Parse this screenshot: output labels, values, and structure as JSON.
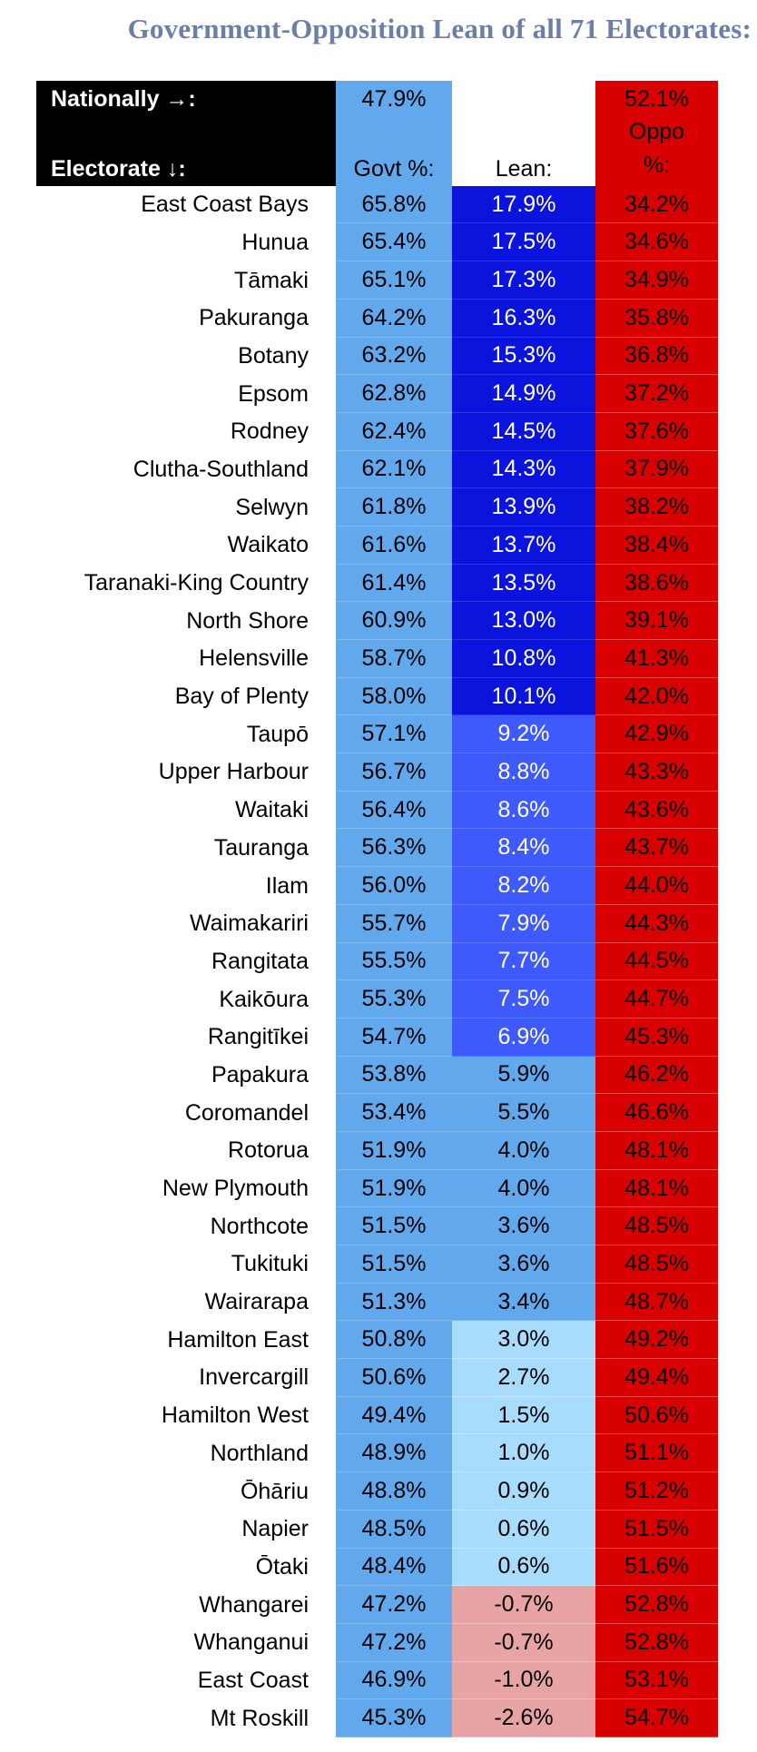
{
  "title": "Government-Opposition Lean of all 71 Electorates:",
  "header": {
    "national_label": "Nationally →:",
    "national_govt": "47.9%",
    "national_oppo": "52.1%",
    "electorate_label": "Electorate ↓:",
    "govt_label": "Govt %:",
    "lean_label": "Lean:",
    "oppo_label_1": "Oppo",
    "oppo_label_2": "%:"
  },
  "colors": {
    "govt": "#62a8ec",
    "oppo": "#d80000",
    "lean_strong": "#0a14dc",
    "lean_mid": "#3e5afa",
    "lean_weak": "#62a8ec",
    "lean_slight": "#a8dcfc",
    "lean_negative": "#e8a4a4",
    "title": "#6b7fa9"
  },
  "rows": [
    {
      "name": "East Coast Bays",
      "govt": "65.8%",
      "lean": "17.9%",
      "oppo": "34.2%",
      "tier": "strong"
    },
    {
      "name": "Hunua",
      "govt": "65.4%",
      "lean": "17.5%",
      "oppo": "34.6%",
      "tier": "strong"
    },
    {
      "name": "Tāmaki",
      "govt": "65.1%",
      "lean": "17.3%",
      "oppo": "34.9%",
      "tier": "strong"
    },
    {
      "name": "Pakuranga",
      "govt": "64.2%",
      "lean": "16.3%",
      "oppo": "35.8%",
      "tier": "strong"
    },
    {
      "name": "Botany",
      "govt": "63.2%",
      "lean": "15.3%",
      "oppo": "36.8%",
      "tier": "strong"
    },
    {
      "name": "Epsom",
      "govt": "62.8%",
      "lean": "14.9%",
      "oppo": "37.2%",
      "tier": "strong"
    },
    {
      "name": "Rodney",
      "govt": "62.4%",
      "lean": "14.5%",
      "oppo": "37.6%",
      "tier": "strong"
    },
    {
      "name": "Clutha-Southland",
      "govt": "62.1%",
      "lean": "14.3%",
      "oppo": "37.9%",
      "tier": "strong"
    },
    {
      "name": "Selwyn",
      "govt": "61.8%",
      "lean": "13.9%",
      "oppo": "38.2%",
      "tier": "strong"
    },
    {
      "name": "Waikato",
      "govt": "61.6%",
      "lean": "13.7%",
      "oppo": "38.4%",
      "tier": "strong"
    },
    {
      "name": "Taranaki-King Country",
      "govt": "61.4%",
      "lean": "13.5%",
      "oppo": "38.6%",
      "tier": "strong"
    },
    {
      "name": "North Shore",
      "govt": "60.9%",
      "lean": "13.0%",
      "oppo": "39.1%",
      "tier": "strong"
    },
    {
      "name": "Helensville",
      "govt": "58.7%",
      "lean": "10.8%",
      "oppo": "41.3%",
      "tier": "strong"
    },
    {
      "name": "Bay of Plenty",
      "govt": "58.0%",
      "lean": "10.1%",
      "oppo": "42.0%",
      "tier": "strong"
    },
    {
      "name": "Taupō",
      "govt": "57.1%",
      "lean": "9.2%",
      "oppo": "42.9%",
      "tier": "mid"
    },
    {
      "name": "Upper Harbour",
      "govt": "56.7%",
      "lean": "8.8%",
      "oppo": "43.3%",
      "tier": "mid"
    },
    {
      "name": "Waitaki",
      "govt": "56.4%",
      "lean": "8.6%",
      "oppo": "43.6%",
      "tier": "mid"
    },
    {
      "name": "Tauranga",
      "govt": "56.3%",
      "lean": "8.4%",
      "oppo": "43.7%",
      "tier": "mid"
    },
    {
      "name": "Ilam",
      "govt": "56.0%",
      "lean": "8.2%",
      "oppo": "44.0%",
      "tier": "mid"
    },
    {
      "name": "Waimakariri",
      "govt": "55.7%",
      "lean": "7.9%",
      "oppo": "44.3%",
      "tier": "mid"
    },
    {
      "name": "Rangitata",
      "govt": "55.5%",
      "lean": "7.7%",
      "oppo": "44.5%",
      "tier": "mid"
    },
    {
      "name": "Kaikōura",
      "govt": "55.3%",
      "lean": "7.5%",
      "oppo": "44.7%",
      "tier": "mid"
    },
    {
      "name": "Rangitīkei",
      "govt": "54.7%",
      "lean": "6.9%",
      "oppo": "45.3%",
      "tier": "mid"
    },
    {
      "name": "Papakura",
      "govt": "53.8%",
      "lean": "5.9%",
      "oppo": "46.2%",
      "tier": "weak"
    },
    {
      "name": "Coromandel",
      "govt": "53.4%",
      "lean": "5.5%",
      "oppo": "46.6%",
      "tier": "weak"
    },
    {
      "name": "Rotorua",
      "govt": "51.9%",
      "lean": "4.0%",
      "oppo": "48.1%",
      "tier": "weak"
    },
    {
      "name": "New Plymouth",
      "govt": "51.9%",
      "lean": "4.0%",
      "oppo": "48.1%",
      "tier": "weak"
    },
    {
      "name": "Northcote",
      "govt": "51.5%",
      "lean": "3.6%",
      "oppo": "48.5%",
      "tier": "weak"
    },
    {
      "name": "Tukituki",
      "govt": "51.5%",
      "lean": "3.6%",
      "oppo": "48.5%",
      "tier": "weak"
    },
    {
      "name": "Wairarapa",
      "govt": "51.3%",
      "lean": "3.4%",
      "oppo": "48.7%",
      "tier": "weak"
    },
    {
      "name": "Hamilton East",
      "govt": "50.8%",
      "lean": "3.0%",
      "oppo": "49.2%",
      "tier": "slight"
    },
    {
      "name": "Invercargill",
      "govt": "50.6%",
      "lean": "2.7%",
      "oppo": "49.4%",
      "tier": "slight"
    },
    {
      "name": "Hamilton West",
      "govt": "49.4%",
      "lean": "1.5%",
      "oppo": "50.6%",
      "tier": "slight"
    },
    {
      "name": "Northland",
      "govt": "48.9%",
      "lean": "1.0%",
      "oppo": "51.1%",
      "tier": "slight"
    },
    {
      "name": "Ōhāriu",
      "govt": "48.8%",
      "lean": "0.9%",
      "oppo": "51.2%",
      "tier": "slight"
    },
    {
      "name": "Napier",
      "govt": "48.5%",
      "lean": "0.6%",
      "oppo": "51.5%",
      "tier": "slight"
    },
    {
      "name": "Ōtaki",
      "govt": "48.4%",
      "lean": "0.6%",
      "oppo": "51.6%",
      "tier": "slight"
    },
    {
      "name": "Whangarei",
      "govt": "47.2%",
      "lean": "-0.7%",
      "oppo": "52.8%",
      "tier": "neg"
    },
    {
      "name": "Whanganui",
      "govt": "47.2%",
      "lean": "-0.7%",
      "oppo": "52.8%",
      "tier": "neg"
    },
    {
      "name": "East Coast",
      "govt": "46.9%",
      "lean": "-1.0%",
      "oppo": "53.1%",
      "tier": "neg"
    },
    {
      "name": "Mt Roskill",
      "govt": "45.3%",
      "lean": "-2.6%",
      "oppo": "54.7%",
      "tier": "neg"
    }
  ]
}
